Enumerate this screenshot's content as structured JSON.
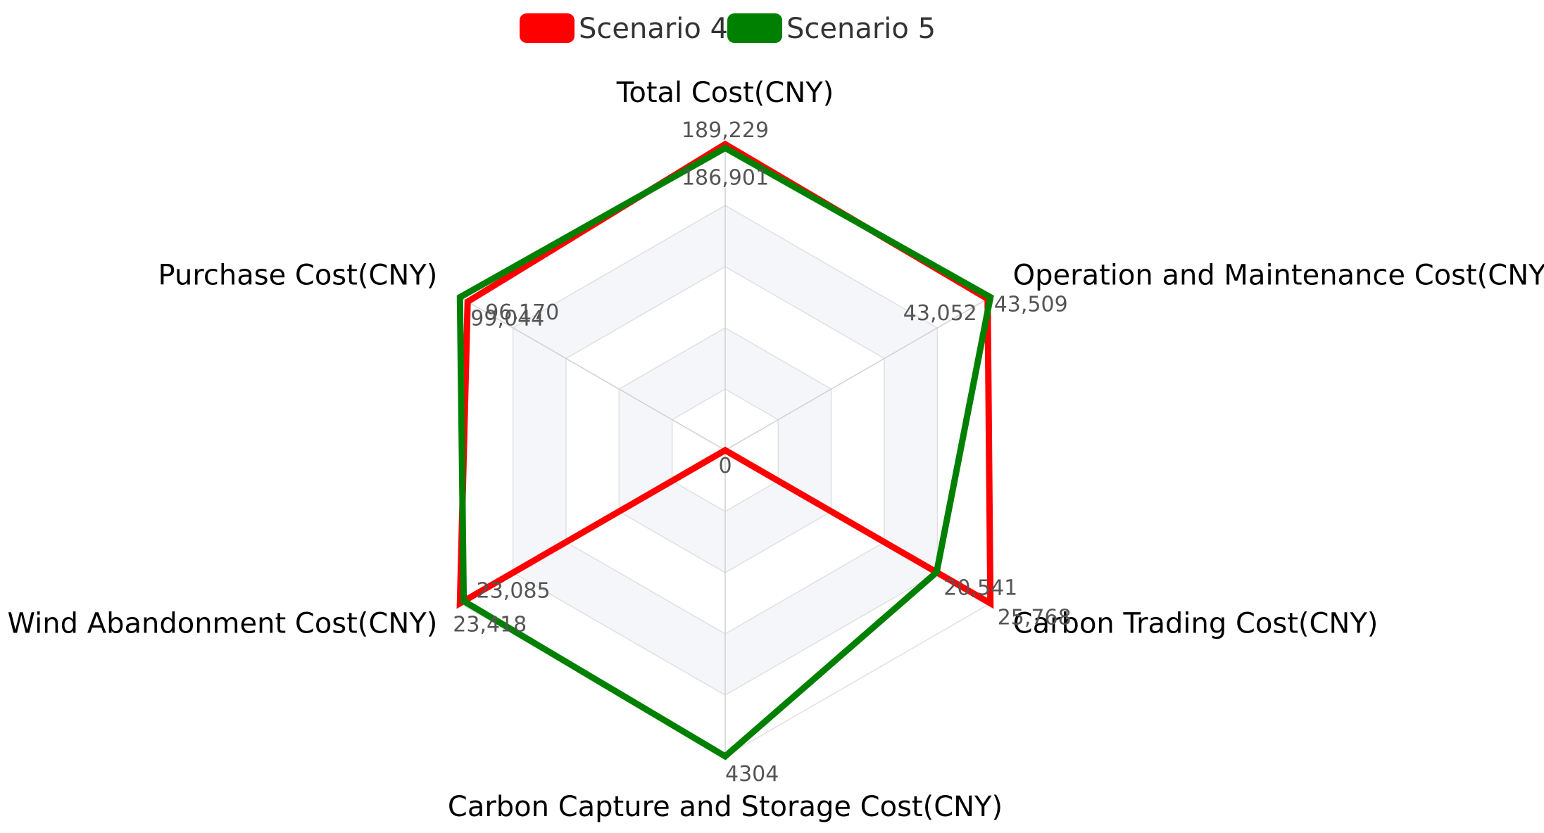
{
  "chart_data": {
    "type": "radar",
    "axes": [
      "Total Cost(CNY)",
      "Operation and Maintenance Cost(CNY)",
      "Carbon Trading Cost(CNY)",
      "Carbon Capture and Storage Cost(CNY)",
      "Wind Abandonment Cost(CNY)",
      "Purchase Cost(CNY)"
    ],
    "axis_ranges": [
      [
        0,
        189229
      ],
      [
        0,
        43509
      ],
      [
        0,
        25768
      ],
      [
        0,
        4304
      ],
      [
        0,
        23418
      ],
      [
        0,
        99044
      ]
    ],
    "series": [
      {
        "name": "Scenario 4",
        "color": "#ff0000",
        "values": [
          189229,
          43052,
          25768,
          0,
          23418,
          96170
        ]
      },
      {
        "name": "Scenario 5",
        "color": "#008000",
        "values": [
          186901,
          43509,
          20541,
          4304,
          23085,
          99044
        ]
      }
    ],
    "data_labels": [
      "189,229",
      "43,509",
      "25,768",
      "4304",
      "23,418",
      "99,044",
      "186,901",
      "43,052",
      "20,541",
      "23,085",
      "96,170",
      "0"
    ],
    "center_label": "0",
    "legend_position": "top-center",
    "grid": true,
    "grid_shape": "hexagon",
    "grid_band_color": "#f5f6fa",
    "grid_line_color": "#e0e0e0"
  }
}
